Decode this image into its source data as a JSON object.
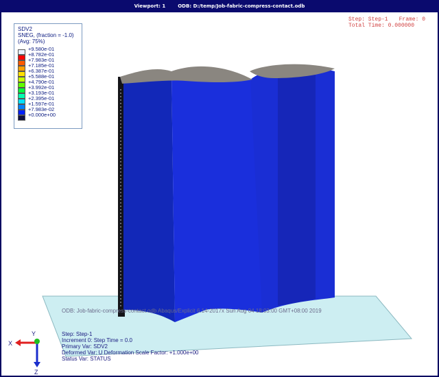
{
  "title_bar": {
    "viewport_label": "Viewport: 1",
    "odb_label": "ODB: D:/temp/Job-fabric-compress-contact.odb"
  },
  "legend": {
    "title": "SDV2",
    "subtitle": "SNEG, (fraction = -1.0)",
    "average": "(Avg: 75%)",
    "entries": [
      {
        "label": "+9.580e-01",
        "color": "#e8f0ff"
      },
      {
        "label": "+8.782e-01",
        "color": "#ff0000"
      },
      {
        "label": "+7.983e-01",
        "color": "#ff5a00"
      },
      {
        "label": "+7.185e-01",
        "color": "#ffa000"
      },
      {
        "label": "+6.387e-01",
        "color": "#ffe000"
      },
      {
        "label": "+5.588e-01",
        "color": "#c8ff00"
      },
      {
        "label": "+4.790e-01",
        "color": "#60ff00"
      },
      {
        "label": "+3.992e-01",
        "color": "#00ff40"
      },
      {
        "label": "+3.193e-01",
        "color": "#00ffb0"
      },
      {
        "label": "+2.395e-01",
        "color": "#00e0ff"
      },
      {
        "label": "+1.597e-01",
        "color": "#0080ff"
      },
      {
        "label": "+7.983e-02",
        "color": "#0020ff"
      },
      {
        "label": "+0.000e+00",
        "color": "#101040"
      }
    ]
  },
  "step_info": {
    "step": "Step: Step-1",
    "frame": "Frame: 0",
    "total_time": "Total Time: 0.000000"
  },
  "odb_info_line": "ODB: Job-fabric-compress-contact.odb    Abaqus/Explicit 6.14-2017x    Sun Aug 04 18:03:00 GMT+08:00 2019",
  "bottom_info": {
    "step": "Step: Step-1",
    "increment": "Increment      0: Step Time =    0.0",
    "primary_var": "Primary Var: SDV2",
    "deformed_var": "Deformed Var: U   Deformation Scale Factor: +1.000e+00",
    "status_var": "Status Var: STATUS"
  },
  "triad": {
    "x_label": "X",
    "y_label": "Y",
    "z_label": "Z"
  },
  "colors": {
    "background": "#000060",
    "model_blue": "#1a2dcc",
    "ground": "#cdeef2"
  }
}
